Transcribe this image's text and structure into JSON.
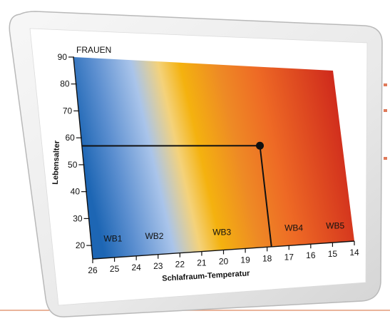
{
  "chart_data": {
    "type": "heatmap",
    "title": "FRAUEN",
    "xlabel": "Schlafraum-Temperatur",
    "ylabel": "Lebensalter",
    "x_ticks": [
      26,
      25,
      24,
      23,
      22,
      21,
      20,
      19,
      18,
      17,
      16,
      15,
      14
    ],
    "y_ticks": [
      20,
      30,
      40,
      50,
      60,
      70,
      80,
      90
    ],
    "xlim": [
      26,
      14
    ],
    "ylim": [
      15,
      90
    ],
    "zones": [
      "WB1",
      "WB2",
      "WB3",
      "WB4",
      "WB5"
    ],
    "highlight": {
      "x": 17.8,
      "y": 57
    },
    "colors": {
      "wb1": "#1d66b4",
      "wb2": "#a9c4ea",
      "wb3": "#f4b20f",
      "wb4": "#ee6a25",
      "wb5": "#cf2a1c"
    }
  }
}
